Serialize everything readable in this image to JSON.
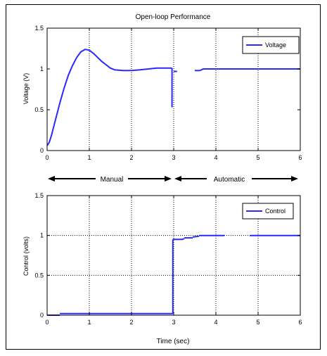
{
  "chart_data": [
    {
      "type": "line",
      "title": "Open-loop Performance",
      "xlabel": "",
      "ylabel": "Voltage (V)",
      "xlim": [
        0,
        6
      ],
      "ylim": [
        0,
        1.5
      ],
      "xticks": [
        "0",
        "1",
        "2",
        "3",
        "4",
        "5",
        "6"
      ],
      "yticks": [
        "0",
        "0.5",
        "1",
        "1.5"
      ],
      "grid": "x-dotted",
      "legend": "top-right",
      "annotations": [
        "Manual",
        "Automatic"
      ],
      "series": [
        {
          "name": "Voltage",
          "color": "#2a2aff",
          "segments": [
            {
              "x": [
                0,
                0.05,
                0.1,
                0.2,
                0.3,
                0.4,
                0.5,
                0.6,
                0.7,
                0.8,
                0.9,
                1.0,
                1.1,
                1.2,
                1.3,
                1.4,
                1.5,
                1.6,
                1.8,
                2.0,
                2.2,
                2.4,
                2.6,
                2.8,
                2.96
              ],
              "y": [
                0.06,
                0.1,
                0.18,
                0.38,
                0.58,
                0.76,
                0.92,
                1.04,
                1.14,
                1.21,
                1.24,
                1.23,
                1.19,
                1.14,
                1.09,
                1.05,
                1.01,
                0.99,
                0.98,
                0.98,
                0.99,
                1.0,
                1.01,
                1.01,
                1.01
              ]
            },
            {
              "x": [
                2.96,
                2.96
              ],
              "y": [
                1.01,
                0.53
              ]
            },
            {
              "x": [
                3.0,
                3.08
              ],
              "y": [
                0.97,
                0.97
              ]
            },
            {
              "x": [
                3.5,
                3.62
              ],
              "y": [
                0.98,
                0.98
              ]
            },
            {
              "x": [
                3.62,
                3.7,
                3.8,
                3.9,
                4.0,
                4.2,
                4.5,
                5.0,
                5.5,
                6.0
              ],
              "y": [
                0.98,
                1.0,
                1.0,
                1.0,
                1.0,
                1.0,
                1.0,
                1.0,
                1.0,
                1.0
              ]
            }
          ]
        }
      ]
    },
    {
      "type": "line",
      "title": "",
      "xlabel": "Time (sec)",
      "ylabel": "Control (volts)",
      "xlim": [
        0,
        6
      ],
      "ylim": [
        0,
        1.5
      ],
      "xticks": [
        "0",
        "1",
        "2",
        "3",
        "4",
        "5",
        "6"
      ],
      "yticks": [
        "0",
        "0.5",
        "1",
        "1.5"
      ],
      "grid": "dotted",
      "legend": "top-right",
      "series": [
        {
          "name": "Control",
          "color": "#2a2aff",
          "segments": [
            {
              "x": [
                0,
                0.3
              ],
              "y": [
                0.0,
                0.0
              ]
            },
            {
              "x": [
                0.3,
                1.0,
                2.0,
                2.98
              ],
              "y": [
                0.02,
                0.02,
                0.02,
                0.02
              ]
            },
            {
              "x": [
                2.98,
                2.98
              ],
              "y": [
                0.02,
                0.95
              ]
            },
            {
              "x": [
                2.98,
                3.2,
                3.25
              ],
              "y": [
                0.95,
                0.95,
                0.96
              ]
            },
            {
              "x": [
                3.25,
                3.45
              ],
              "y": [
                0.97,
                0.97
              ]
            },
            {
              "x": [
                3.45,
                3.6
              ],
              "y": [
                0.98,
                0.99
              ]
            },
            {
              "x": [
                3.6,
                4.0,
                4.2
              ],
              "y": [
                1.0,
                1.0,
                1.0
              ]
            },
            {
              "x": [
                4.8,
                5.0,
                6.0
              ],
              "y": [
                1.0,
                1.0,
                1.0
              ]
            }
          ]
        }
      ]
    }
  ]
}
